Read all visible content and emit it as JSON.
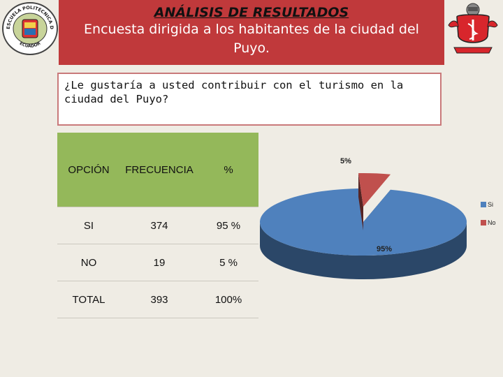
{
  "header": {
    "title": "ANÁLISIS DE RESULTADOS",
    "subtitle_line1": "Encuesta dirigida a los habitantes de la ciudad del",
    "subtitle_line2": "Puyo."
  },
  "logos": {
    "left": {
      "arc_text_top": "ESCUELA POLITÉCNICA DEL EJÉRCITO",
      "arc_text_bottom": "ECUADOR"
    },
    "right": {
      "name": "red-crest-logo"
    }
  },
  "question": "¿Le gustaría a usted  contribuir con el  turismo en la ciudad del Puyo?",
  "table": {
    "headers": [
      "OPCIÓN",
      "FRECUENCIA",
      "%"
    ],
    "rows": [
      [
        "SI",
        "374",
        "95 %"
      ],
      [
        "NO",
        "19",
        "5 %"
      ],
      [
        "TOTAL",
        "393",
        "100%"
      ]
    ]
  },
  "chart_data": {
    "type": "pie",
    "title": "",
    "categories": [
      "Si",
      "No"
    ],
    "values": [
      95,
      5
    ],
    "data_labels": [
      "95%",
      "5%"
    ],
    "colors": [
      "#4f81bd",
      "#c0504d"
    ],
    "legend_position": "right",
    "three_d": true
  }
}
